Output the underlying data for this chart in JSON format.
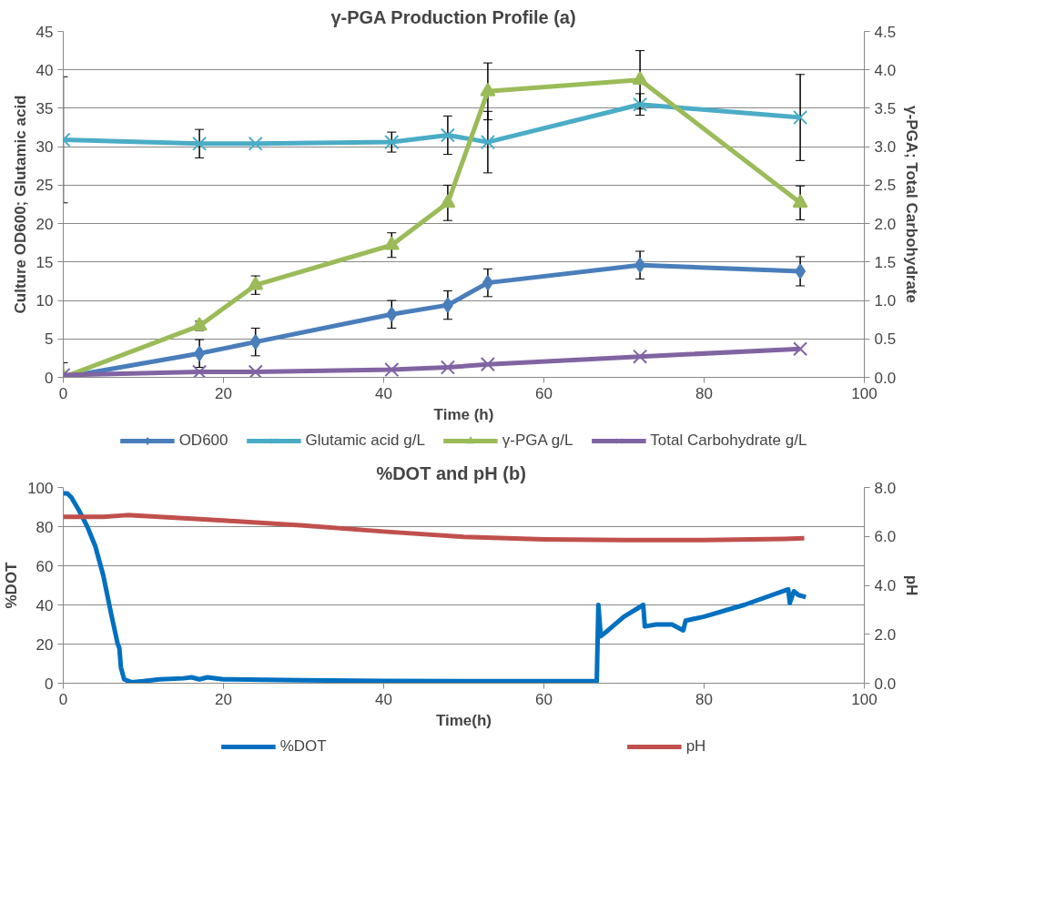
{
  "chart_data": [
    {
      "type": "line",
      "title": "γ-PGA Production Profile     (a)",
      "xlabel": "Time (h)",
      "ylabel": "Culture OD600; Glutamic acid",
      "y2label": "γ-PGA; Total Carbohydrate",
      "x": [
        0,
        17,
        24,
        41,
        48,
        53,
        72,
        92
      ],
      "series": [
        {
          "name": "OD600",
          "color": "#4a7ebb",
          "marker": "diamond",
          "values": [
            0,
            3.1,
            4.6,
            8.2,
            9.4,
            12.3,
            14.6,
            13.8
          ],
          "errors": [
            [
              0,
              1.9
            ],
            1.8,
            1.8,
            1.8,
            1.85,
            1.8,
            1.8,
            1.9
          ]
        },
        {
          "name": "Glutamic acid g/L",
          "color": "#4bacc6",
          "marker": "cross",
          "values": [
            30.9,
            30.4,
            30.4,
            30.6,
            31.5,
            30.6,
            35.5,
            33.8
          ],
          "errors": [
            8.2,
            1.85,
            null,
            1.3,
            2.5,
            4,
            1.4,
            5.6
          ]
        },
        {
          "name": "γ-PGA g/L",
          "color": "#9bbb59",
          "marker": "triangle",
          "axis": "y2",
          "values": [
            0,
            0.67,
            1.2,
            1.72,
            2.27,
            3.72,
            3.87,
            2.27
          ],
          "errors": [
            null,
            0.06,
            0.12,
            0.16,
            0.23,
            0.37,
            0.38,
            0.22
          ]
        },
        {
          "name": "Total Carbohydrate g/L",
          "color": "#8064a2",
          "marker": "cross",
          "axis": "y2",
          "values": [
            0.03,
            0.07,
            0.07,
            0.1,
            0.13,
            0.17,
            0.27,
            0.37
          ]
        }
      ],
      "xlim": [
        0,
        100
      ],
      "xticks": [
        0,
        20,
        40,
        60,
        80,
        100
      ],
      "ylim": [
        0,
        45
      ],
      "yticks": [
        0,
        5,
        10,
        15,
        20,
        25,
        30,
        35,
        40,
        45
      ],
      "y2lim": [
        0,
        4.5
      ],
      "y2ticks": [
        {
          "value": 0,
          "label": "0.0"
        },
        {
          "value": 0.5,
          "label": "0.5"
        },
        {
          "value": 1,
          "label": "1.0"
        },
        {
          "value": 1.5,
          "label": "1.5"
        },
        {
          "value": 2,
          "label": "2.0"
        },
        {
          "value": 2.5,
          "label": "2.5"
        },
        {
          "value": 3,
          "label": "3.0"
        },
        {
          "value": 3.5,
          "label": "3.5"
        },
        {
          "value": 4,
          "label": "4.0"
        },
        {
          "value": 4.5,
          "label": "4.5"
        }
      ],
      "grid": "y",
      "legend": "bottom"
    },
    {
      "type": "line",
      "title": "%DOT and pH      (b)",
      "xlabel": "Time(h)",
      "ylabel": "%DOT",
      "y2label": "pH",
      "series": [
        {
          "name": "%DOT",
          "color": "#0070c0",
          "x": [
            0,
            0.5,
            1,
            2,
            3,
            4,
            5,
            6,
            6.8,
            7,
            7.2,
            7.6,
            8.5,
            10,
            12,
            15,
            16,
            17,
            18,
            20,
            30,
            40,
            50,
            60,
            66.6,
            66.8,
            67.1,
            68,
            70,
            72.4,
            72.6,
            74,
            76,
            77.4,
            77.7,
            80,
            85,
            90.5,
            90.7,
            91.2,
            91.8,
            92.7
          ],
          "values": [
            97,
            97,
            95,
            88,
            80,
            70,
            55,
            35,
            20,
            18,
            8,
            2,
            0.5,
            1,
            2,
            2.5,
            3,
            2,
            3,
            2,
            1.5,
            1.2,
            1,
            1,
            1,
            40,
            24,
            27,
            34,
            40,
            29,
            30,
            30,
            27,
            32,
            34,
            40,
            48,
            41,
            47,
            45,
            44
          ]
        },
        {
          "name": "pH",
          "color": "#c0504d",
          "axis": "y2",
          "x": [
            0,
            5,
            8,
            12,
            20,
            30,
            40,
            50,
            60,
            70,
            80,
            90,
            92.5
          ],
          "values": [
            6.8,
            6.8,
            6.87,
            6.8,
            6.65,
            6.45,
            6.2,
            5.98,
            5.88,
            5.85,
            5.85,
            5.9,
            5.93
          ]
        }
      ],
      "xlim": [
        0,
        100
      ],
      "xticks": [
        0,
        20,
        40,
        60,
        80,
        100
      ],
      "ylim": [
        0,
        100
      ],
      "yticks": [
        0,
        20,
        40,
        60,
        80,
        100
      ],
      "y2lim": [
        0,
        8
      ],
      "y2ticks": [
        {
          "value": 0,
          "label": "0.0"
        },
        {
          "value": 2,
          "label": "2.0"
        },
        {
          "value": 4,
          "label": "4.0"
        },
        {
          "value": 6,
          "label": "6.0"
        },
        {
          "value": 8,
          "label": "8.0"
        }
      ],
      "grid": "y",
      "legend": "bottom",
      "marker": "none"
    }
  ]
}
